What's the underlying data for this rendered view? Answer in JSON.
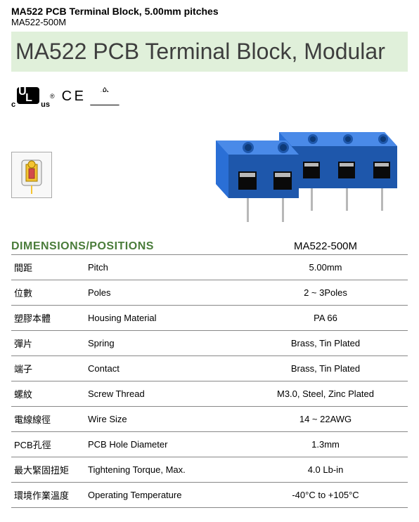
{
  "header": {
    "title": "MA522 PCB Terminal Block, 5.00mm pitches",
    "sub": "MA522-500M"
  },
  "banner": {
    "text": "MA522 PCB Terminal Block, Modular"
  },
  "cert": {
    "ul_c": "c",
    "ul_us": "us",
    "ce": "C E",
    "vde": "VDE"
  },
  "dim": {
    "heading": "DIMENSIONS/POSITIONS",
    "model": "MA522-500M"
  },
  "specs": [
    {
      "zh": "間距",
      "en": "Pitch",
      "val": "5.00mm"
    },
    {
      "zh": "位數",
      "en": "Poles",
      "val": "2 ~ 3Poles"
    },
    {
      "zh": "塑膠本體",
      "en": "Housing Material",
      "val": "PA 66"
    },
    {
      "zh": "彈片",
      "en": "Spring",
      "val": "Brass, Tin Plated"
    },
    {
      "zh": "端子",
      "en": "Contact",
      "val": "Brass, Tin Plated"
    },
    {
      "zh": "螺紋",
      "en": "Screw Thread",
      "val": "M3.0, Steel, Zinc Plated"
    },
    {
      "zh": "電線線徑",
      "en": "Wire Size",
      "val": "14 ~ 22AWG"
    },
    {
      "zh": "PCB孔徑",
      "en": "PCB Hole Diameter",
      "val": "1.3mm"
    },
    {
      "zh": "最大緊固扭矩",
      "en": "Tightening Torque, Max.",
      "val": "4.0 Lb-in"
    },
    {
      "zh": "環境作業溫度",
      "en": "Operating Temperature",
      "val": "-40°C to +105°C"
    }
  ],
  "colors": {
    "banner_bg": "#e0f0da",
    "heading_green": "#4a7c3a",
    "rule": "#888888",
    "product_blue": "#2a6fd6",
    "product_blue_dark": "#1e57ab",
    "pin_silver": "#b8b8b8",
    "thumb_yellow": "#f5c431",
    "thumb_red": "#d24a4a"
  }
}
